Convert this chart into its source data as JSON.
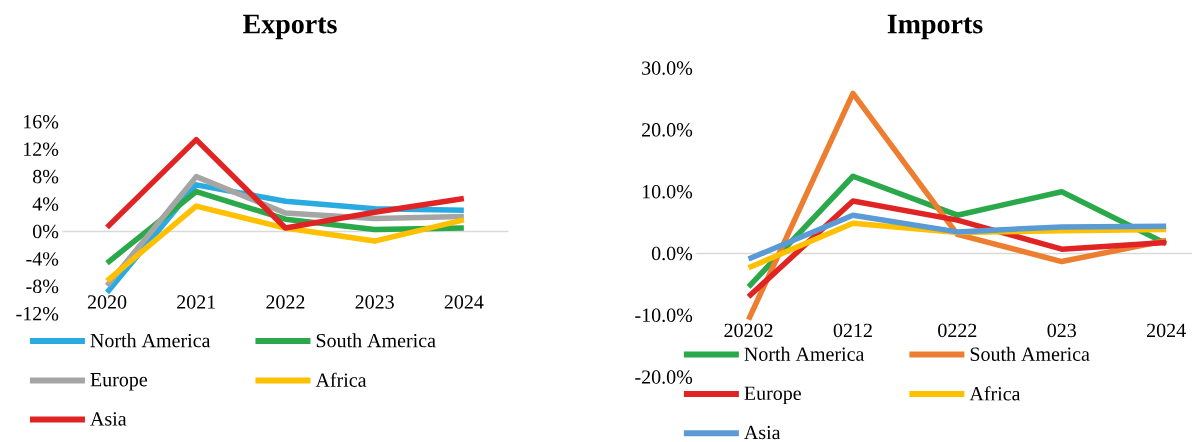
{
  "chart_data": [
    {
      "type": "line",
      "title": "Exports",
      "categories": [
        "2020",
        "2021",
        "2022",
        "2023",
        "2024"
      ],
      "ylim": [
        -12,
        16
      ],
      "yticks": [
        {
          "value": -12,
          "label": "-12%"
        },
        {
          "value": -8,
          "label": "-8%"
        },
        {
          "value": -4,
          "label": "-4%"
        },
        {
          "value": 0,
          "label": "0%"
        },
        {
          "value": 4,
          "label": "4%"
        },
        {
          "value": 8,
          "label": "8%"
        },
        {
          "value": 12,
          "label": "12%"
        },
        {
          "value": 16,
          "label": "16%"
        }
      ],
      "legend": "bottom",
      "marker": "none",
      "line_style": "solid",
      "series": [
        {
          "name": "North America",
          "color": "#29abe2",
          "values": [
            -8.9,
            6.8,
            4.4,
            3.3,
            3.1
          ]
        },
        {
          "name": "South America",
          "color": "#2aa84a",
          "values": [
            -4.6,
            5.8,
            1.8,
            0.3,
            0.5
          ]
        },
        {
          "name": "Europe",
          "color": "#a5a5a5",
          "values": [
            -7.9,
            8.0,
            2.7,
            1.9,
            2.2
          ]
        },
        {
          "name": "Africa",
          "color": "#ffc000",
          "values": [
            -7.2,
            3.7,
            0.5,
            -1.4,
            1.7
          ]
        },
        {
          "name": "Asia",
          "color": "#e02424",
          "values": [
            0.6,
            13.4,
            0.5,
            2.8,
            4.8
          ]
        }
      ]
    },
    {
      "type": "line",
      "title": "Imports",
      "categories": [
        "20202",
        "0212",
        "0222",
        "023",
        "2024"
      ],
      "ylim": [
        -20,
        30
      ],
      "yticks": [
        {
          "value": -20,
          "label": "-20.0%"
        },
        {
          "value": -10,
          "label": "-10.0%"
        },
        {
          "value": 0,
          "label": "0.0%"
        },
        {
          "value": 10,
          "label": "10.0%"
        },
        {
          "value": 20,
          "label": "20.0%"
        },
        {
          "value": 30,
          "label": "30.0%"
        }
      ],
      "legend": "bottom",
      "marker": "none",
      "line_style": "solid",
      "series": [
        {
          "name": "North America",
          "color": "#2aa84a",
          "values": [
            -5.4,
            12.5,
            6.2,
            10.0,
            1.6
          ]
        },
        {
          "name": "South America",
          "color": "#ed7d31",
          "values": [
            -10.7,
            25.9,
            3.1,
            -1.3,
            2.1
          ]
        },
        {
          "name": "Europe",
          "color": "#e02424",
          "values": [
            -7.0,
            8.5,
            5.4,
            0.7,
            1.8
          ]
        },
        {
          "name": "Africa",
          "color": "#ffc000",
          "values": [
            -2.3,
            4.9,
            3.4,
            3.7,
            3.9
          ]
        },
        {
          "name": "Asia",
          "color": "#5b9bd5",
          "values": [
            -0.9,
            6.2,
            3.5,
            4.3,
            4.4
          ]
        }
      ]
    }
  ]
}
